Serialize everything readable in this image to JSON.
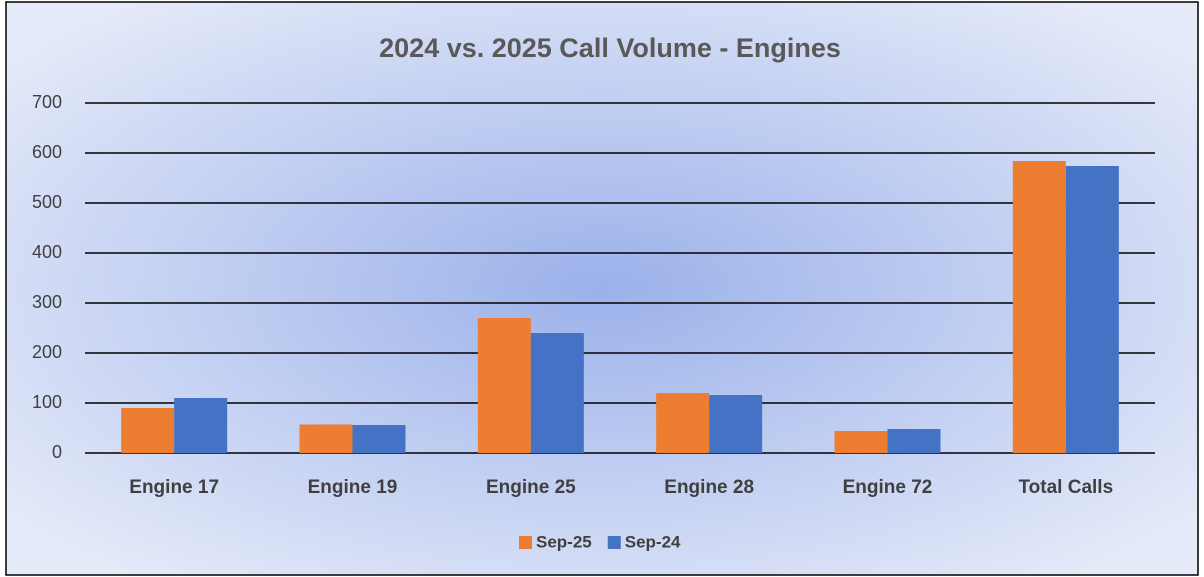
{
  "chart_data": {
    "type": "bar",
    "title": "2024 vs. 2025 Call Volume - Engines",
    "categories": [
      "Engine 17",
      "Engine 19",
      "Engine 25",
      "Engine 28",
      "Engine 72",
      "Total Calls"
    ],
    "series": [
      {
        "name": "Sep-25",
        "color": "#ed7d31",
        "values": [
          90,
          57,
          270,
          120,
          44,
          584
        ]
      },
      {
        "name": "Sep-24",
        "color": "#4472c4",
        "values": [
          110,
          56,
          240,
          116,
          48,
          574
        ]
      }
    ],
    "ylim": [
      0,
      700
    ],
    "yticks": [
      0,
      100,
      200,
      300,
      400,
      500,
      600,
      700
    ],
    "grid": true,
    "legend": "bottom"
  }
}
